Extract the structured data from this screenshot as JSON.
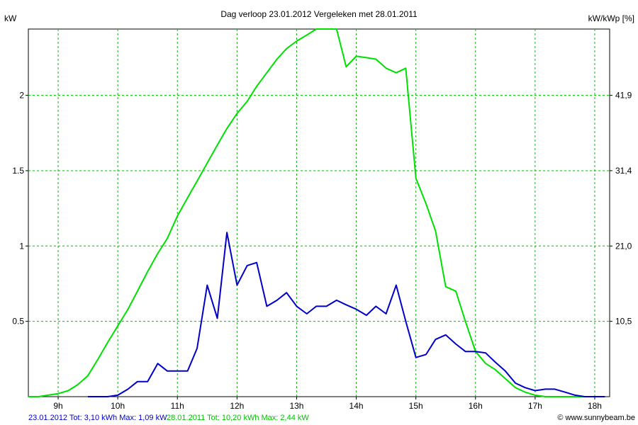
{
  "chart_data": {
    "type": "line",
    "title": "Dag  verloop 23.01.2012   Vergeleken met 28.01.2011",
    "ylabel_left": "kW",
    "ylabel_right": "kW/kWp [%]",
    "x_ticks": [
      "9h",
      "10h",
      "11h",
      "12h",
      "13h",
      "14h",
      "15h",
      "16h",
      "17h",
      "18h"
    ],
    "y_left_ticks": [
      "0.5",
      "1",
      "1.5",
      "2"
    ],
    "y_right_ticks": [
      "10,5",
      "21,0",
      "31,4",
      "41,9"
    ],
    "xlim": [
      8.5,
      18.25
    ],
    "ylim": [
      0,
      2.44
    ],
    "grid": true,
    "series": [
      {
        "name": "28.01.2011",
        "color": "#00e000",
        "legend": "28.01.2011 Tot: 10,20 kWh Max: 2,44 kW",
        "x": [
          8.5,
          8.67,
          8.83,
          9.0,
          9.17,
          9.33,
          9.5,
          9.67,
          9.83,
          10.0,
          10.17,
          10.33,
          10.5,
          10.67,
          10.83,
          11.0,
          11.17,
          11.33,
          11.5,
          11.67,
          11.83,
          12.0,
          12.17,
          12.33,
          12.5,
          12.67,
          12.83,
          13.0,
          13.17,
          13.33,
          13.5,
          13.67,
          13.83,
          14.0,
          14.17,
          14.33,
          14.5,
          14.67,
          14.83,
          15.0,
          15.17,
          15.33,
          15.5,
          15.67,
          15.83,
          16.0,
          16.17,
          16.33,
          16.5,
          16.67,
          16.83,
          17.0,
          17.17,
          17.33,
          17.5,
          17.67,
          17.83,
          18.0,
          18.17
        ],
        "values": [
          0.0,
          0.0,
          0.01,
          0.02,
          0.04,
          0.08,
          0.14,
          0.25,
          0.36,
          0.47,
          0.58,
          0.7,
          0.83,
          0.95,
          1.05,
          1.2,
          1.32,
          1.43,
          1.55,
          1.67,
          1.78,
          1.88,
          1.96,
          2.06,
          2.15,
          2.24,
          2.31,
          2.36,
          2.4,
          2.44,
          2.44,
          2.44,
          2.19,
          2.26,
          2.25,
          2.24,
          2.18,
          2.15,
          2.18,
          1.45,
          1.28,
          1.1,
          0.73,
          0.7,
          0.5,
          0.3,
          0.22,
          0.18,
          0.12,
          0.06,
          0.03,
          0.01,
          0.0,
          0.0,
          0.0,
          0.0,
          0.0,
          0.0,
          0.0
        ]
      },
      {
        "name": "23.01.2012",
        "color": "#0000c8",
        "legend": "23.01.2012 Tot: 3,10 kWh Max: 1,09 kW",
        "x": [
          9.5,
          9.83,
          10.0,
          10.17,
          10.33,
          10.5,
          10.67,
          10.83,
          11.0,
          11.17,
          11.33,
          11.5,
          11.67,
          11.83,
          12.0,
          12.17,
          12.33,
          12.5,
          12.67,
          12.83,
          13.0,
          13.17,
          13.33,
          13.5,
          13.67,
          13.83,
          14.0,
          14.17,
          14.33,
          14.5,
          14.67,
          14.83,
          15.0,
          15.17,
          15.33,
          15.5,
          15.67,
          15.83,
          16.0,
          16.17,
          16.33,
          16.5,
          16.67,
          16.83,
          17.0,
          17.17,
          17.33,
          17.5,
          17.67,
          17.83,
          18.0,
          18.17
        ],
        "values": [
          0.0,
          0.0,
          0.01,
          0.05,
          0.1,
          0.1,
          0.22,
          0.17,
          0.17,
          0.17,
          0.32,
          0.74,
          0.52,
          1.09,
          0.74,
          0.87,
          0.89,
          0.6,
          0.64,
          0.69,
          0.6,
          0.55,
          0.6,
          0.6,
          0.64,
          0.61,
          0.58,
          0.54,
          0.6,
          0.55,
          0.74,
          0.5,
          0.26,
          0.28,
          0.38,
          0.41,
          0.35,
          0.3,
          0.3,
          0.29,
          0.23,
          0.17,
          0.09,
          0.06,
          0.04,
          0.05,
          0.05,
          0.03,
          0.01,
          0.0,
          0.0,
          0.0
        ]
      }
    ]
  },
  "footer": {
    "legend_2012": "23.01.2012 Tot: 3,10 kWh Max: 1,09 kW",
    "legend_2011": "28.01.2011 Tot: 10,20 kWh Max: 2,44 kW",
    "credit": "© www.sunnybeam.be"
  }
}
